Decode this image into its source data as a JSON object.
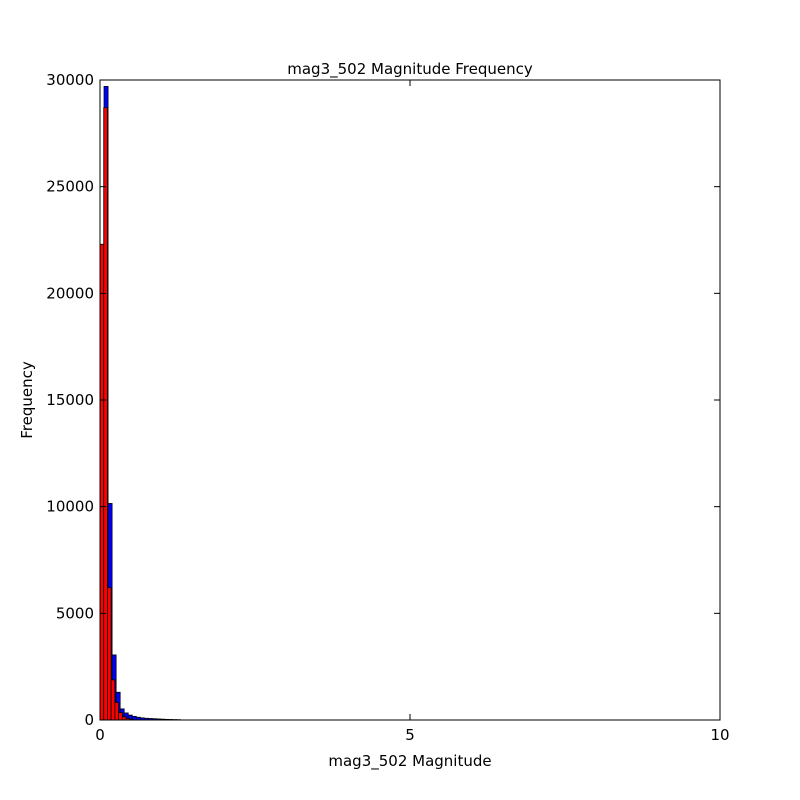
{
  "chart_data": {
    "type": "bar",
    "title": "mag3_502 Magnitude Frequency",
    "xlabel": "mag3_502 Magnitude",
    "ylabel": "Frequency",
    "xlim": [
      0,
      10
    ],
    "ylim": [
      0,
      30000
    ],
    "xticks": [
      0,
      5,
      10
    ],
    "yticks": [
      0,
      5000,
      10000,
      15000,
      20000,
      25000,
      30000
    ],
    "grid": false,
    "legend": "none",
    "series": [
      {
        "color": "#0000ff",
        "bins": [
          {
            "x0": 0.065,
            "x1": 0.13,
            "y": 29700
          },
          {
            "x0": 0.13,
            "x1": 0.195,
            "y": 10150
          },
          {
            "x0": 0.195,
            "x1": 0.26,
            "y": 3050
          },
          {
            "x0": 0.26,
            "x1": 0.325,
            "y": 1300
          },
          {
            "x0": 0.325,
            "x1": 0.39,
            "y": 520
          },
          {
            "x0": 0.39,
            "x1": 0.455,
            "y": 330
          },
          {
            "x0": 0.455,
            "x1": 0.52,
            "y": 230
          },
          {
            "x0": 0.52,
            "x1": 0.585,
            "y": 170
          },
          {
            "x0": 0.585,
            "x1": 0.65,
            "y": 130
          },
          {
            "x0": 0.65,
            "x1": 0.715,
            "y": 100
          },
          {
            "x0": 0.715,
            "x1": 0.78,
            "y": 80
          },
          {
            "x0": 0.78,
            "x1": 0.845,
            "y": 70
          },
          {
            "x0": 0.845,
            "x1": 0.91,
            "y": 60
          },
          {
            "x0": 0.91,
            "x1": 0.975,
            "y": 50
          },
          {
            "x0": 0.975,
            "x1": 1.04,
            "y": 40
          },
          {
            "x0": 1.04,
            "x1": 1.105,
            "y": 30
          },
          {
            "x0": 1.105,
            "x1": 1.17,
            "y": 25
          },
          {
            "x0": 1.17,
            "x1": 1.235,
            "y": 20
          },
          {
            "x0": 1.235,
            "x1": 1.3,
            "y": 15
          }
        ]
      },
      {
        "color": "#ff0000",
        "bins": [
          {
            "x0": 0.0,
            "x1": 0.06,
            "y": 22300
          },
          {
            "x0": 0.06,
            "x1": 0.12,
            "y": 28700
          },
          {
            "x0": 0.12,
            "x1": 0.18,
            "y": 6200
          },
          {
            "x0": 0.18,
            "x1": 0.24,
            "y": 1880
          },
          {
            "x0": 0.24,
            "x1": 0.3,
            "y": 820
          },
          {
            "x0": 0.3,
            "x1": 0.36,
            "y": 350
          },
          {
            "x0": 0.36,
            "x1": 0.42,
            "y": 150
          },
          {
            "x0": 0.42,
            "x1": 0.48,
            "y": 70
          },
          {
            "x0": 0.48,
            "x1": 0.54,
            "y": 30
          }
        ]
      }
    ]
  }
}
